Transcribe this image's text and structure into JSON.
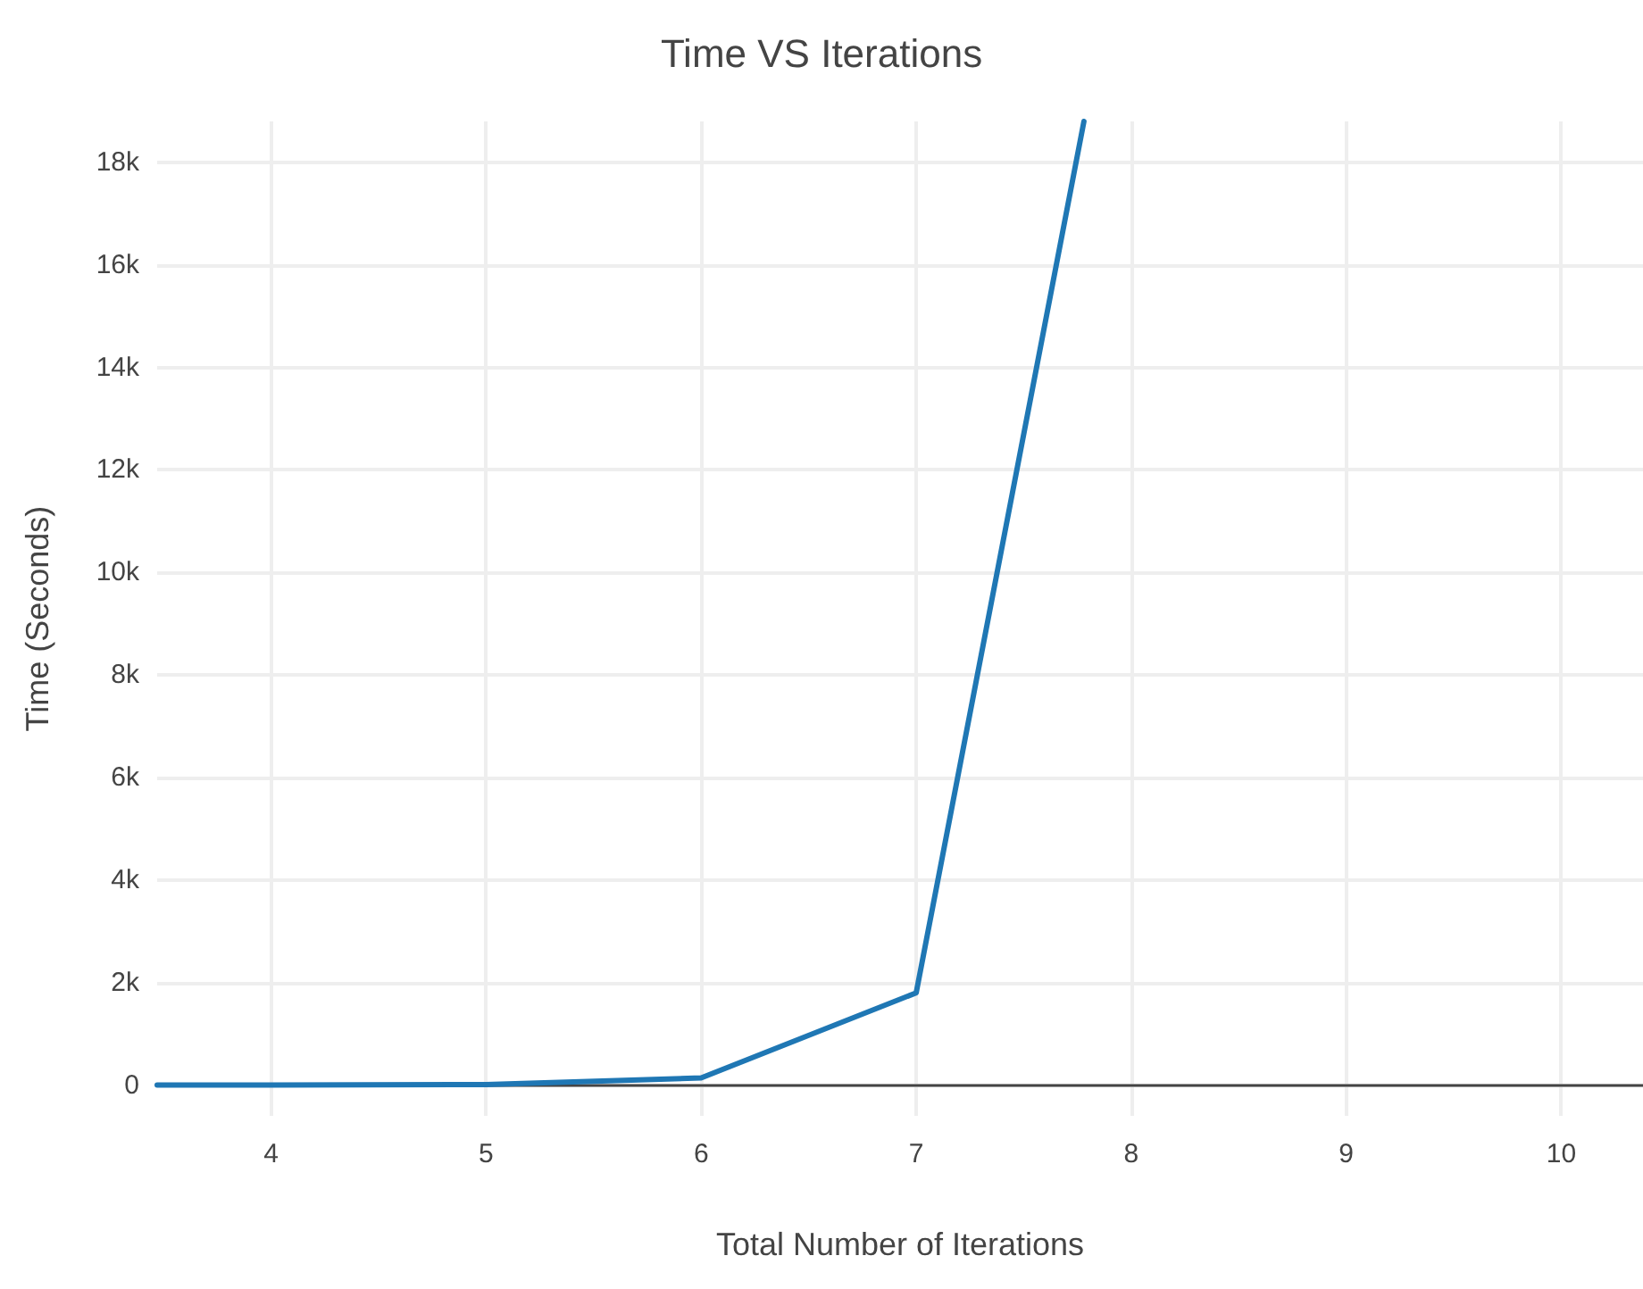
{
  "chart_data": {
    "type": "line",
    "title": "Time VS Iterations",
    "xlabel": "Total Number of Iterations",
    "ylabel": "Time (Seconds)",
    "x": [
      3.47,
      4,
      5,
      6,
      7,
      7.78
    ],
    "series": [
      {
        "color": "#1f77b4",
        "values": [
          0,
          0,
          10,
          140,
          1800,
          18800
        ]
      }
    ],
    "xlim": [
      3.47,
      10.38
    ],
    "xticks": [
      4,
      5,
      6,
      7,
      8,
      9,
      10
    ],
    "ylim": [
      -600,
      18800
    ],
    "yticks": [
      0,
      {
        "value": 2000,
        "label": "2k"
      },
      {
        "value": 4000,
        "label": "4k"
      },
      {
        "value": 6000,
        "label": "6k"
      },
      {
        "value": 8000,
        "label": "8k"
      },
      {
        "value": 10000,
        "label": "10k"
      },
      {
        "value": 12000,
        "label": "12k"
      },
      {
        "value": 14000,
        "label": "14k"
      },
      {
        "value": 16000,
        "label": "16k"
      },
      {
        "value": 18000,
        "label": "18k"
      }
    ],
    "grid": true,
    "marker": "none",
    "line_style": "solid"
  }
}
